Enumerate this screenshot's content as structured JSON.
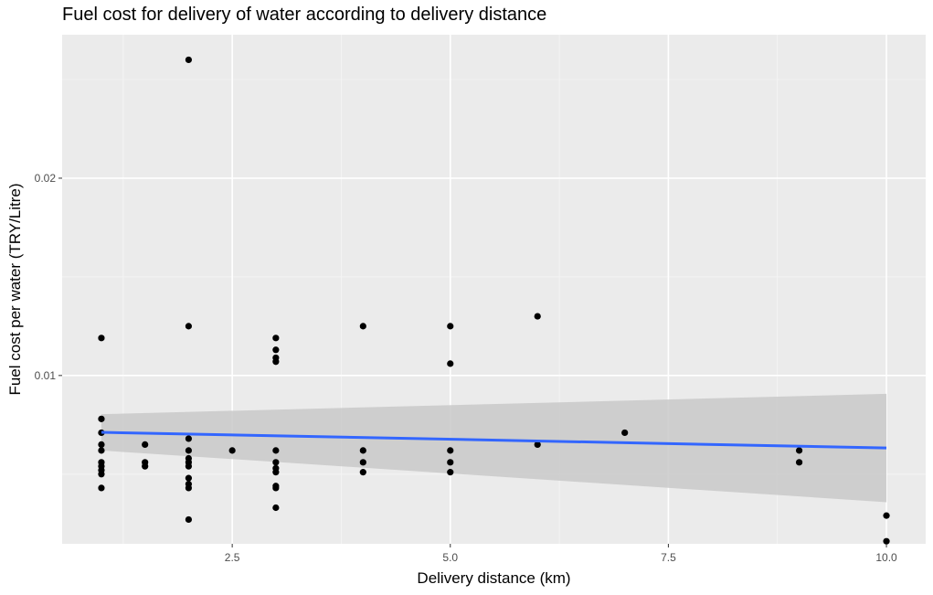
{
  "chart_data": {
    "type": "scatter",
    "title": "Fuel cost for delivery of water according to delivery distance",
    "xlabel": "Delivery distance (km)",
    "ylabel": "Fuel cost per water (TRY/Litre)",
    "xlim": [
      0.55,
      10.45
    ],
    "ylim": [
      0.00147,
      0.02727
    ],
    "x_ticks": [
      2.5,
      5.0,
      7.5,
      10.0
    ],
    "x_tick_labels": [
      "2.5",
      "5.0",
      "7.5",
      "10.0"
    ],
    "y_ticks": [
      0.01,
      0.02
    ],
    "y_tick_labels": [
      "0.01",
      "0.02"
    ],
    "grid": true,
    "legend": "none",
    "colors": {
      "panel": "#ebebeb",
      "grid_major": "#ffffff",
      "grid_minor": "#f5f5f5",
      "points": "#000000",
      "trend_line": "#3366ff",
      "confidence_band": "#c9c9c9"
    },
    "points": [
      {
        "x": 1,
        "y": 0.0119
      },
      {
        "x": 1,
        "y": 0.0078
      },
      {
        "x": 1,
        "y": 0.0071
      },
      {
        "x": 1,
        "y": 0.0065
      },
      {
        "x": 1,
        "y": 0.0062
      },
      {
        "x": 1,
        "y": 0.0056
      },
      {
        "x": 1,
        "y": 0.0054
      },
      {
        "x": 1,
        "y": 0.0052
      },
      {
        "x": 1,
        "y": 0.005
      },
      {
        "x": 1,
        "y": 0.0043
      },
      {
        "x": 1.5,
        "y": 0.0065
      },
      {
        "x": 1.5,
        "y": 0.0056
      },
      {
        "x": 1.5,
        "y": 0.0054
      },
      {
        "x": 2,
        "y": 0.026
      },
      {
        "x": 2,
        "y": 0.0125
      },
      {
        "x": 2,
        "y": 0.0068
      },
      {
        "x": 2,
        "y": 0.0062
      },
      {
        "x": 2,
        "y": 0.0058
      },
      {
        "x": 2,
        "y": 0.0056
      },
      {
        "x": 2,
        "y": 0.0054
      },
      {
        "x": 2,
        "y": 0.0048
      },
      {
        "x": 2,
        "y": 0.0045
      },
      {
        "x": 2,
        "y": 0.0043
      },
      {
        "x": 2,
        "y": 0.0027
      },
      {
        "x": 2.5,
        "y": 0.0062
      },
      {
        "x": 3,
        "y": 0.0119
      },
      {
        "x": 3,
        "y": 0.0113
      },
      {
        "x": 3,
        "y": 0.0109
      },
      {
        "x": 3,
        "y": 0.0107
      },
      {
        "x": 3,
        "y": 0.0062
      },
      {
        "x": 3,
        "y": 0.0056
      },
      {
        "x": 3,
        "y": 0.0053
      },
      {
        "x": 3,
        "y": 0.0051
      },
      {
        "x": 3,
        "y": 0.0044
      },
      {
        "x": 3,
        "y": 0.0043
      },
      {
        "x": 3,
        "y": 0.0033
      },
      {
        "x": 4,
        "y": 0.0125
      },
      {
        "x": 4,
        "y": 0.0062
      },
      {
        "x": 4,
        "y": 0.0056
      },
      {
        "x": 4,
        "y": 0.0051
      },
      {
        "x": 5,
        "y": 0.0125
      },
      {
        "x": 5,
        "y": 0.0106
      },
      {
        "x": 5,
        "y": 0.0062
      },
      {
        "x": 5,
        "y": 0.0056
      },
      {
        "x": 5,
        "y": 0.0051
      },
      {
        "x": 6,
        "y": 0.013
      },
      {
        "x": 6,
        "y": 0.0065
      },
      {
        "x": 7,
        "y": 0.0071
      },
      {
        "x": 9,
        "y": 0.0062
      },
      {
        "x": 9,
        "y": 0.0056
      },
      {
        "x": 10,
        "y": 0.0029
      },
      {
        "x": 10,
        "y": 0.0016
      }
    ],
    "trend_line": {
      "method": "linear",
      "x": [
        1,
        10
      ],
      "y": [
        0.00712,
        0.00633
      ],
      "ci_lower": [
        0.0062,
        0.00358
      ],
      "ci_upper": [
        0.00804,
        0.00907
      ]
    }
  }
}
